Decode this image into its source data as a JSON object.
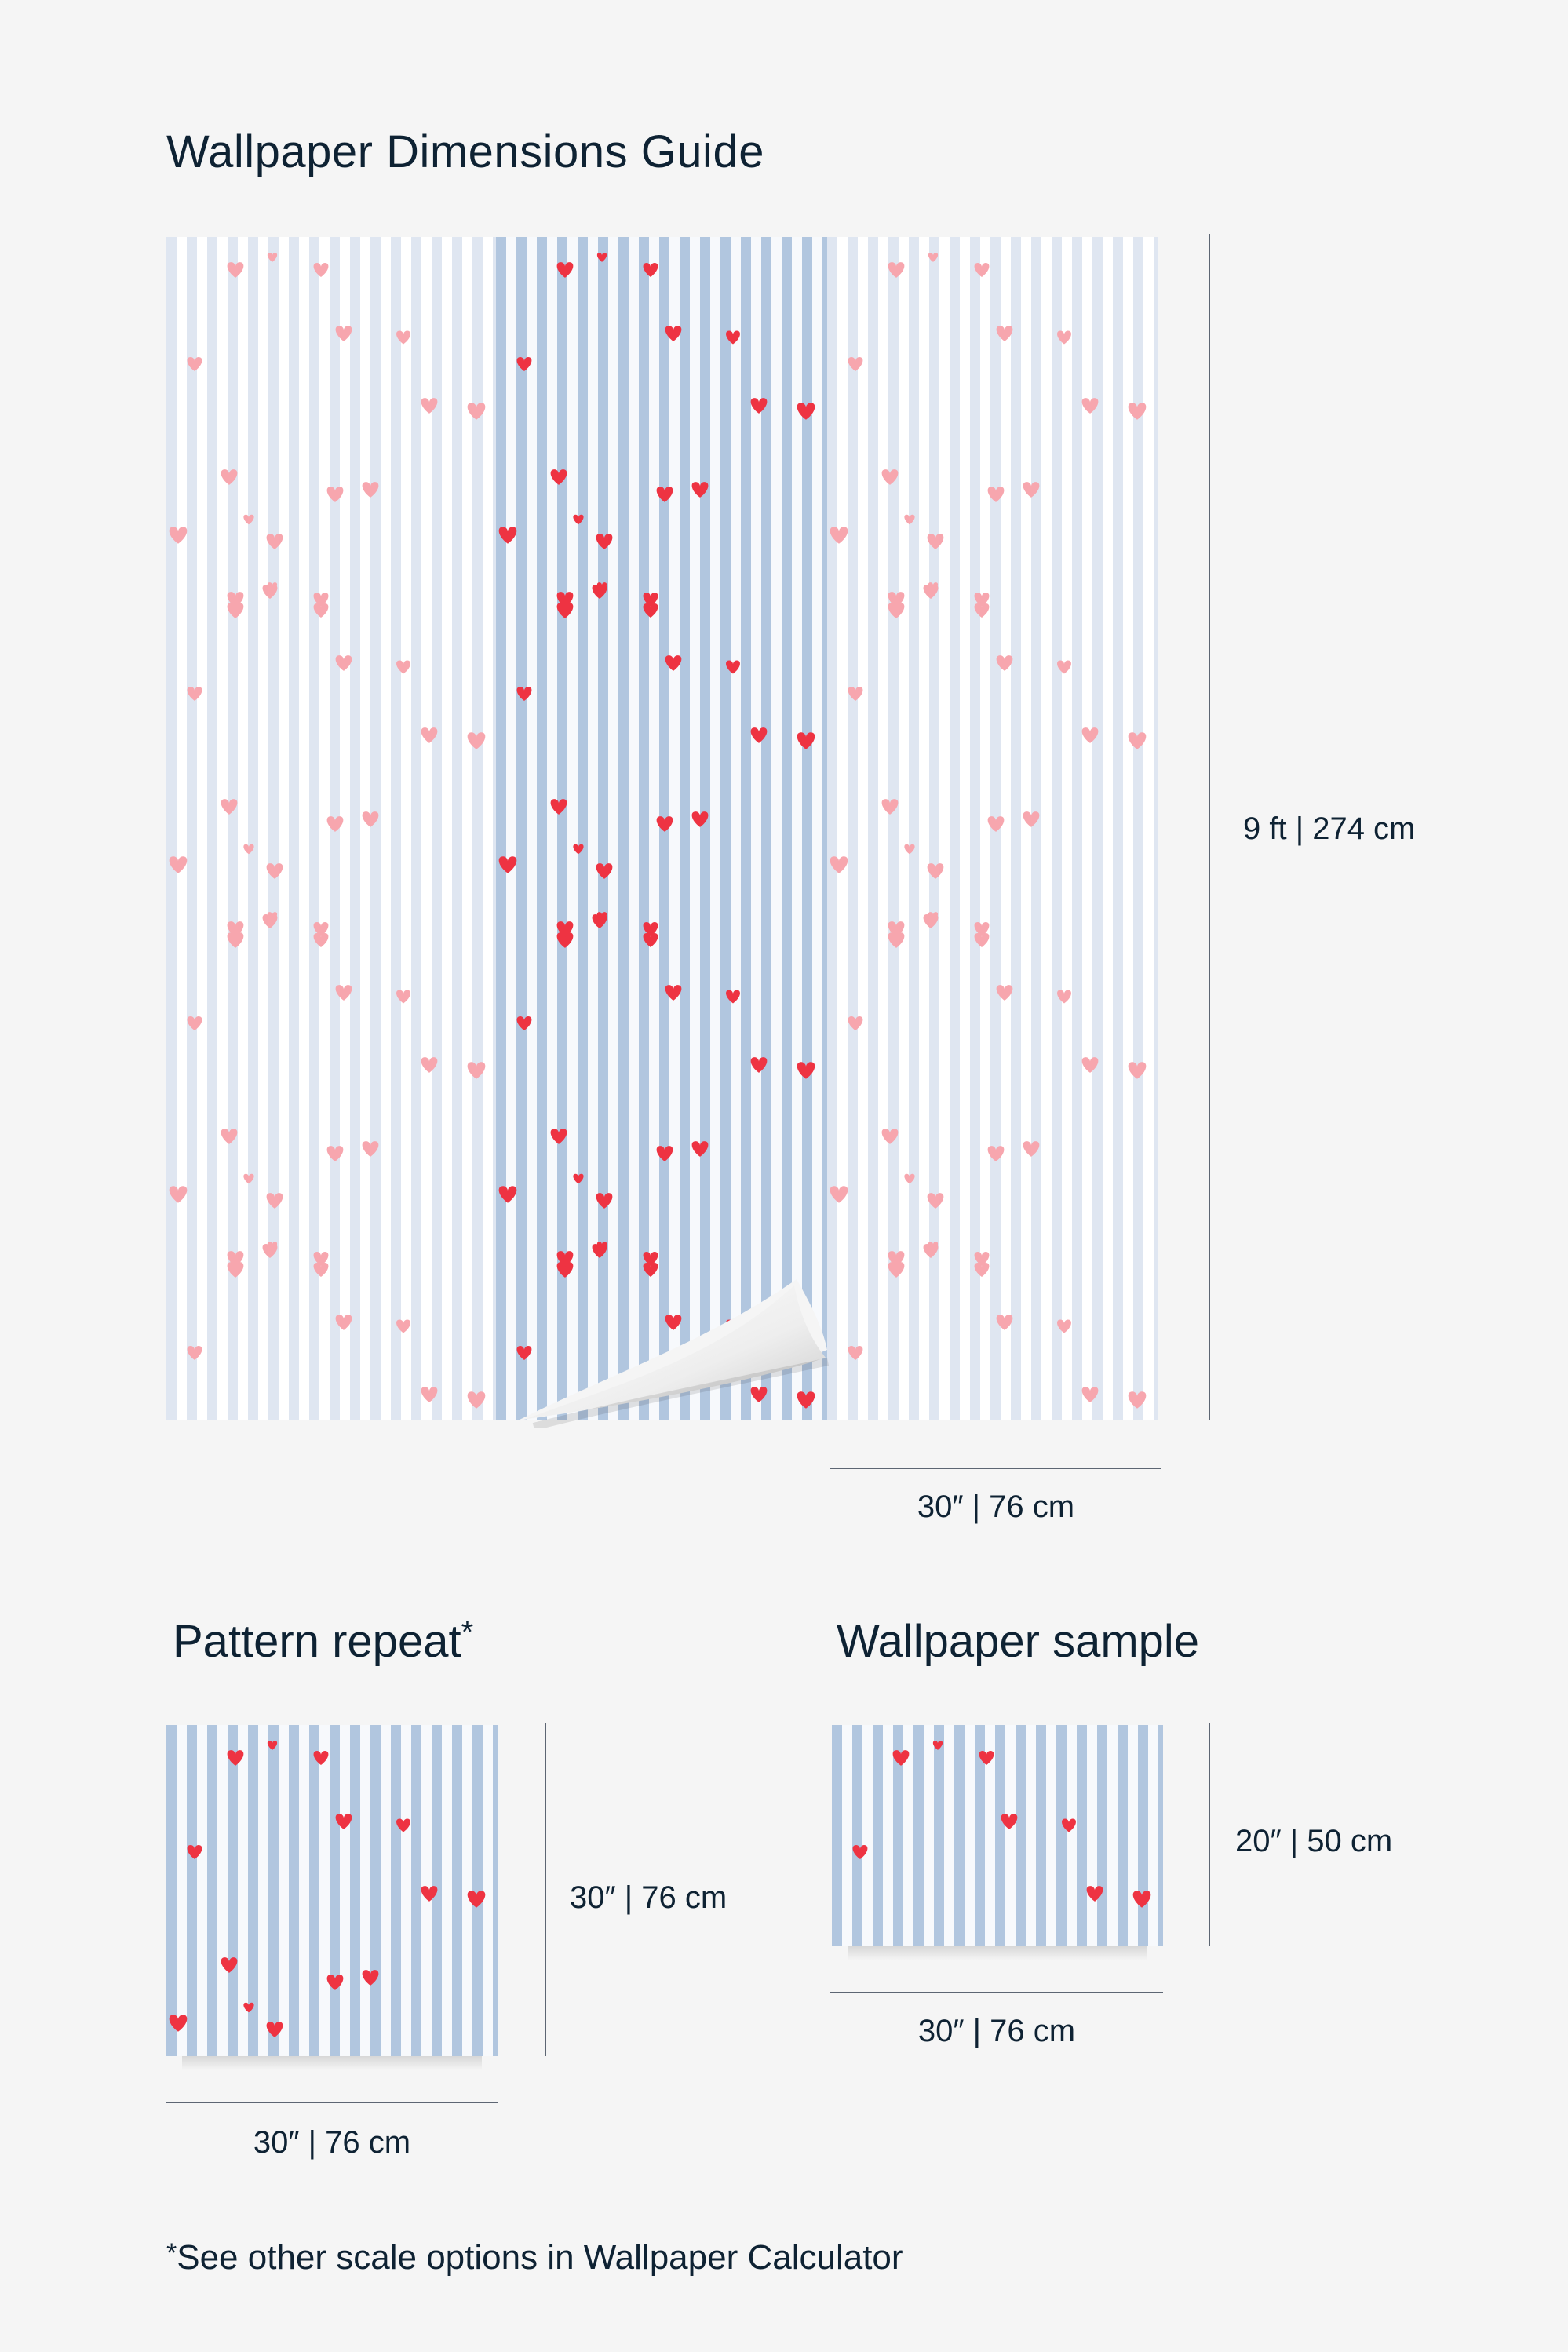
{
  "title": "Wallpaper Dimensions Guide",
  "main_preview": {
    "height_label": "9 ft | 274 cm",
    "width_label": "30″ | 76 cm"
  },
  "pattern_repeat": {
    "heading": "Pattern repeat",
    "heading_mark": "*",
    "height_label": "30″ | 76 cm",
    "width_label": "30″ | 76 cm"
  },
  "sample": {
    "heading": "Wallpaper sample",
    "height_label": "20″ | 50 cm",
    "width_label": "30″ | 76 cm"
  },
  "footnote": {
    "mark": "*",
    "text": "See other scale options in Wallpaper Calculator"
  },
  "colors": {
    "stripe_blue": "#b1c6df",
    "stripe_pale": "#dfe6f1",
    "heart_red": "#ee3342",
    "heart_pink": "#f7a6ae",
    "text_dark": "#0e2233"
  },
  "icons": [
    "heart-icon"
  ]
}
